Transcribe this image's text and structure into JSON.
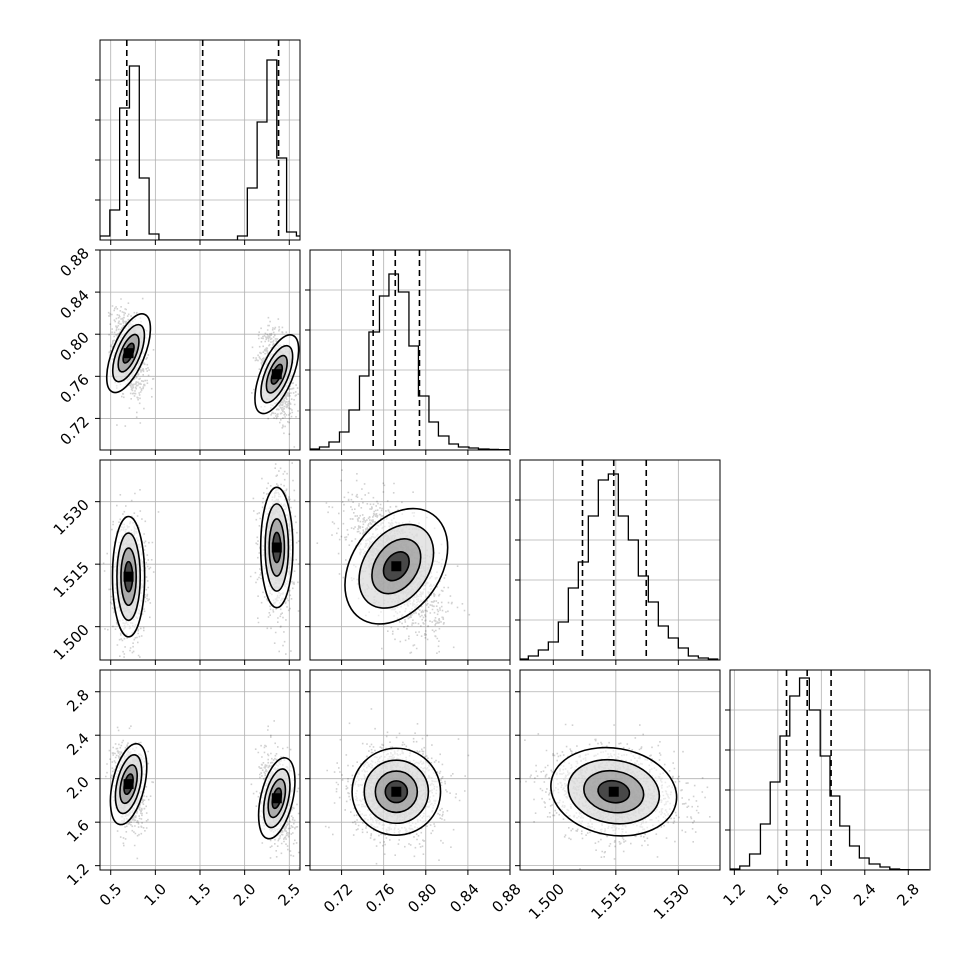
{
  "chart_data": {
    "type": "corner",
    "grid": true,
    "title": "",
    "parameters": [
      {
        "index": 0,
        "range": [
          0.38,
          2.62
        ],
        "ticks": [
          0.5,
          1.0,
          1.5,
          2.0,
          2.5
        ],
        "tick_labels": [
          "0.5",
          "1.0",
          "1.5",
          "2.0",
          "2.5"
        ],
        "quantiles": [
          0.68,
          1.53,
          2.38
        ],
        "modes": [
          {
            "mean": 0.7,
            "sd": 0.09,
            "weight": 0.5
          },
          {
            "mean": 2.36,
            "sd": 0.09,
            "weight": 0.5
          }
        ],
        "histogram": {
          "bin_edges": [
            0.38,
            0.49,
            0.6,
            0.71,
            0.82,
            0.93,
            1.04,
            1.15,
            1.26,
            1.37,
            1.48,
            1.59,
            1.7,
            1.81,
            1.92,
            2.03,
            2.14,
            2.25,
            2.36,
            2.47,
            2.58,
            2.62
          ],
          "counts": [
            0.02,
            0.15,
            0.66,
            0.87,
            0.31,
            0.03,
            0,
            0,
            0,
            0,
            0,
            0,
            0,
            0,
            0.02,
            0.26,
            0.59,
            0.9,
            0.41,
            0.04,
            0.02
          ]
        }
      },
      {
        "index": 1,
        "range": [
          0.69,
          0.88
        ],
        "ticks": [
          0.72,
          0.76,
          0.8,
          0.84,
          0.88
        ],
        "tick_labels": [
          "0.72",
          "0.76",
          "0.80",
          "0.84",
          "0.88"
        ],
        "quantiles": [
          0.75,
          0.771,
          0.794
        ],
        "mean": 0.772,
        "sd": 0.021,
        "histogram": {
          "bin_edges": [
            0.69,
            0.699,
            0.708,
            0.718,
            0.727,
            0.737,
            0.746,
            0.756,
            0.765,
            0.774,
            0.784,
            0.793,
            0.803,
            0.812,
            0.822,
            0.831,
            0.841,
            0.85,
            0.86,
            0.869,
            0.879
          ],
          "counts": [
            0.005,
            0.015,
            0.04,
            0.09,
            0.2,
            0.37,
            0.59,
            0.77,
            0.88,
            0.79,
            0.52,
            0.27,
            0.14,
            0.07,
            0.03,
            0.015,
            0.01,
            0.005,
            0.003,
            0.002
          ]
        }
      },
      {
        "index": 2,
        "range": [
          1.492,
          1.54
        ],
        "ticks": [
          1.5,
          1.515,
          1.53
        ],
        "tick_labels": [
          "1.500",
          "1.515",
          "1.530"
        ],
        "quantiles": [
          1.507,
          1.5145,
          1.5223
        ],
        "mean": 1.5145,
        "sd": 0.0076,
        "histogram": {
          "bin_edges": [
            1.4916,
            1.494,
            1.4964,
            1.4988,
            1.5012,
            1.5036,
            1.506,
            1.5084,
            1.5108,
            1.5132,
            1.5156,
            1.518,
            1.5204,
            1.5228,
            1.5252,
            1.5276,
            1.53,
            1.5324,
            1.5348,
            1.5372,
            1.5396
          ],
          "counts": [
            0.005,
            0.02,
            0.05,
            0.09,
            0.19,
            0.36,
            0.49,
            0.72,
            0.9,
            0.93,
            0.72,
            0.6,
            0.42,
            0.29,
            0.17,
            0.11,
            0.06,
            0.02,
            0.01,
            0.005
          ]
        }
      },
      {
        "index": 3,
        "range": [
          1.16,
          3.0
        ],
        "ticks": [
          1.2,
          1.6,
          2.0,
          2.4,
          2.8
        ],
        "tick_labels": [
          "1.2",
          "1.6",
          "2.0",
          "2.4",
          "2.8"
        ],
        "quantiles": [
          1.68,
          1.87,
          2.09
        ],
        "mean": 1.88,
        "sd": 0.2,
        "histogram": {
          "bin_edges": [
            1.16,
            1.25,
            1.34,
            1.44,
            1.53,
            1.62,
            1.71,
            1.8,
            1.89,
            1.99,
            2.08,
            2.17,
            2.26,
            2.35,
            2.44,
            2.54,
            2.63,
            2.72,
            2.81,
            2.9,
            2.99
          ],
          "counts": [
            0.005,
            0.02,
            0.08,
            0.23,
            0.44,
            0.67,
            0.87,
            0.96,
            0.8,
            0.57,
            0.37,
            0.22,
            0.12,
            0.06,
            0.03,
            0.015,
            0.005,
            0.002,
            0.001,
            0.001
          ]
        }
      }
    ],
    "correlations": {
      "1-2": -0.55,
      "1-3": 0.0,
      "2-3": -0.15,
      "0-1": -0.35,
      "0-2": 0.0,
      "0-3": -0.2
    }
  }
}
